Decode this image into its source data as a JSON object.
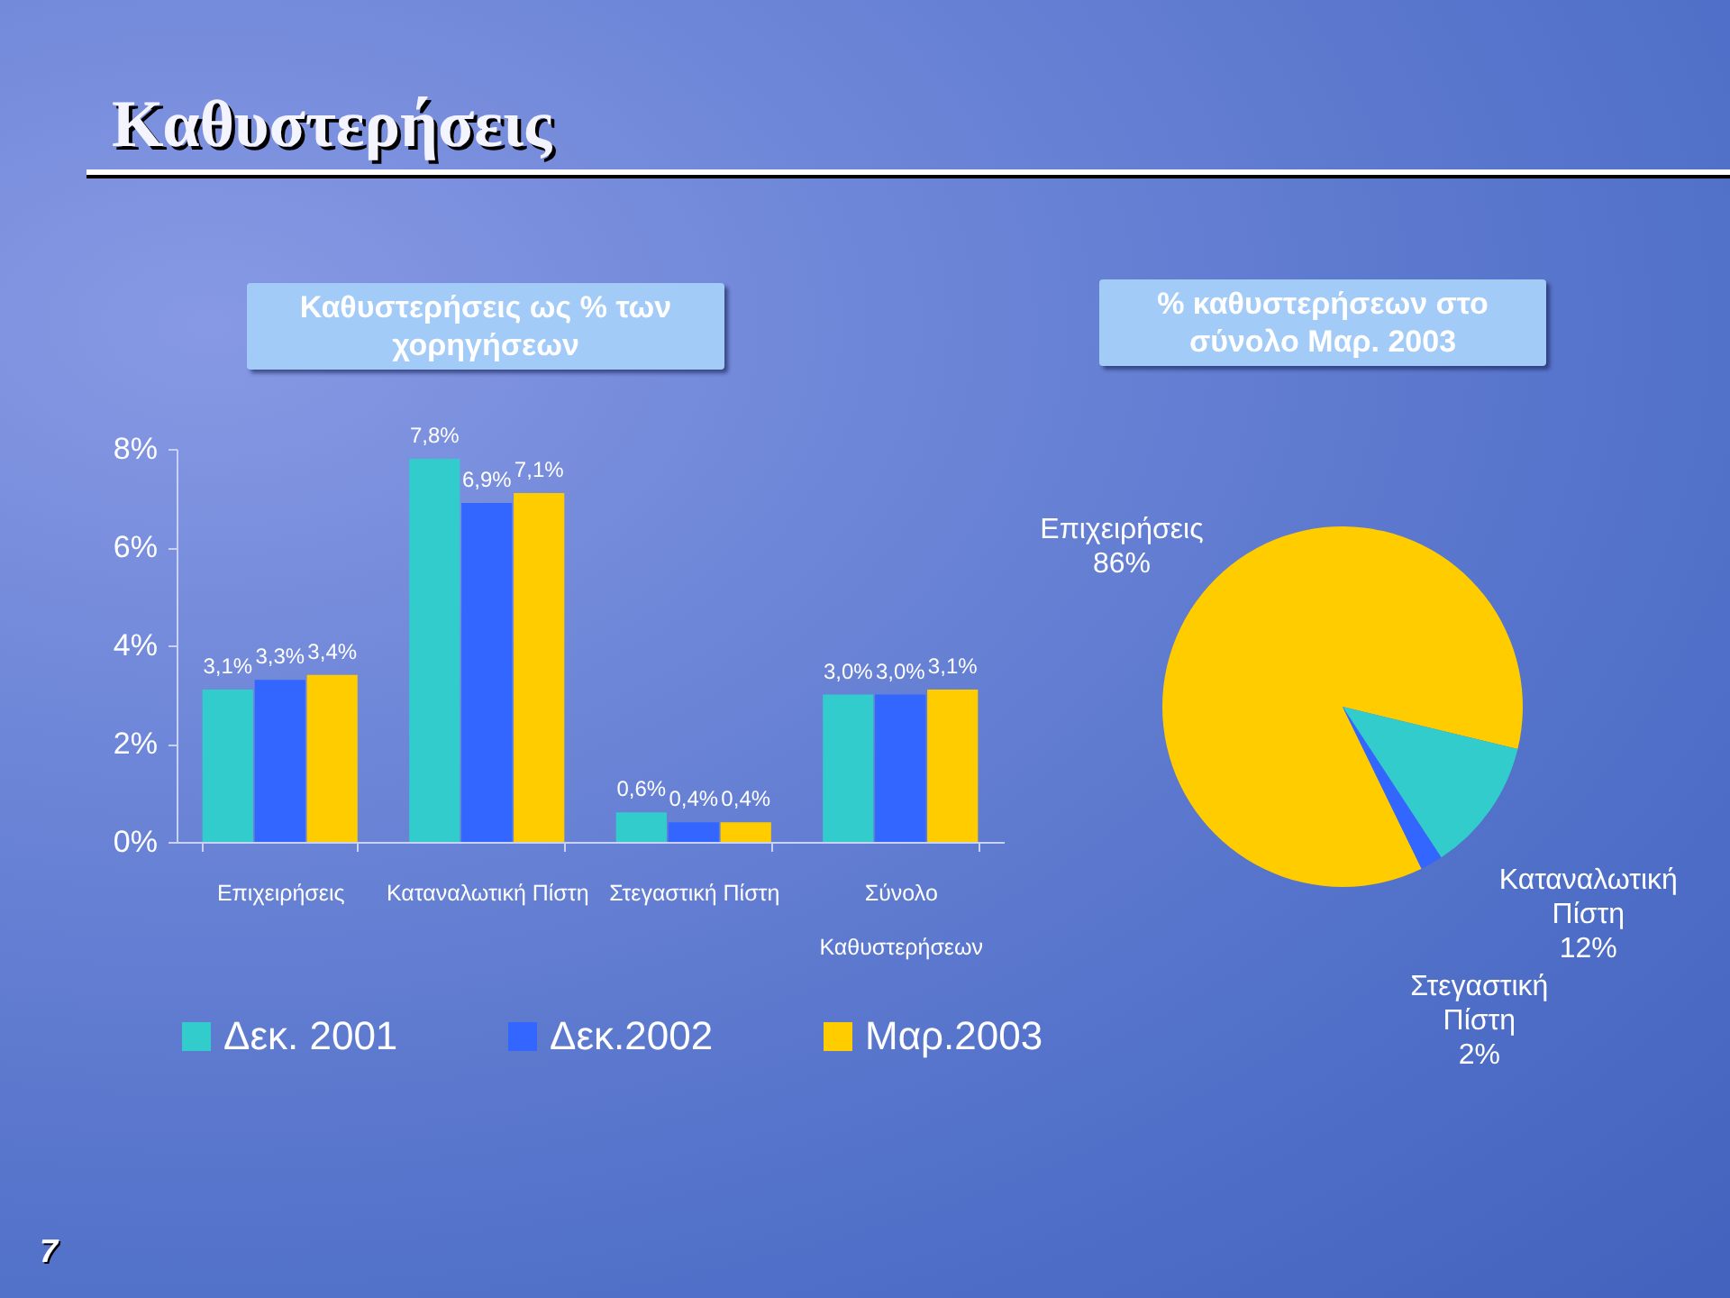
{
  "chart_data": [
    {
      "type": "other",
      "title": "Καθυστερήσεις",
      "annotations": [
        "7"
      ]
    },
    {
      "type": "bar",
      "title": "Καθυστερήσεις ως % των χορηγήσεων",
      "categories": [
        "Επιχειρήσεις",
        "Καταναλωτική Πίστη",
        "Στεγαστική Πίστη",
        "Σύνολο Καθυστερήσεων"
      ],
      "series": [
        {
          "name": "Δεκ. 2001",
          "color": "#33cccc",
          "values": [
            3.1,
            7.8,
            0.6,
            3.0
          ],
          "value_labels": [
            "3,1%",
            "7,8%",
            "0,6%",
            "3,0%"
          ]
        },
        {
          "name": "Δεκ.2002",
          "color": "#3366ff",
          "values": [
            3.3,
            6.9,
            0.4,
            3.0
          ],
          "value_labels": [
            "3,3%",
            "6,9%",
            "0,4%",
            "3,0%"
          ]
        },
        {
          "name": "Μαρ.2003",
          "color": "#ffcc00",
          "values": [
            3.4,
            7.1,
            0.4,
            3.1
          ],
          "value_labels": [
            "3,4%",
            "7,1%",
            "0,4%",
            "3,1%"
          ]
        }
      ],
      "ylim": [
        0,
        8
      ],
      "yticks": [
        {
          "value": 0,
          "label": "0%"
        },
        {
          "value": 2,
          "label": "2%"
        },
        {
          "value": 4,
          "label": "4%"
        },
        {
          "value": 6,
          "label": "6%"
        },
        {
          "value": 8,
          "label": "8%"
        }
      ],
      "legend": "bottom"
    },
    {
      "type": "pie",
      "title": "% καθυστερήσεων στο σύνολο Μαρ. 2003",
      "categories": [
        "Επιχειρήσεις",
        "Καταναλωτική Πίστη",
        "Στεγαστική Πίστη"
      ],
      "values": [
        86,
        12,
        2
      ],
      "colors": [
        "#ffcc00",
        "#33cccc",
        "#3366ff"
      ],
      "value_labels": [
        "86%",
        "12%",
        "2%"
      ]
    }
  ]
}
